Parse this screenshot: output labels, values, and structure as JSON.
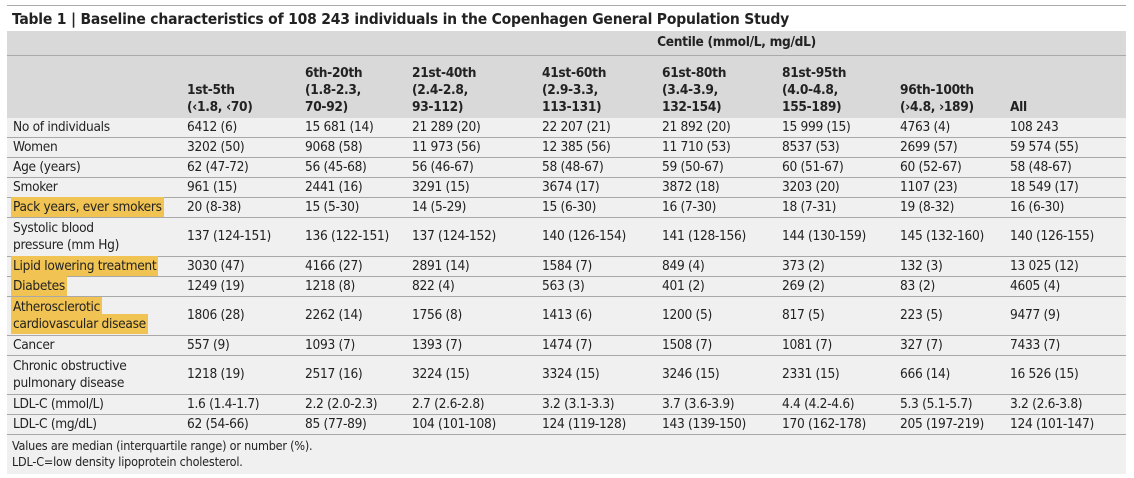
{
  "title": "Table 1 | Baseline characteristics of 108 243 individuals in the Copenhagen General Population Study",
  "group_header": "Centile (mmol/L, mg/dL)",
  "columns": [
    [
      "1st-5th",
      "(‹1.8, ‹70)"
    ],
    [
      "6th-20th",
      "(1.8-2.3,",
      "70-92)"
    ],
    [
      "21st-40th",
      "(2.4-2.8,",
      "93-112)"
    ],
    [
      "41st-60th",
      "(2.9-3.3,",
      "113-131)"
    ],
    [
      "61st-80th",
      "(3.4-3.9,",
      "132-154)"
    ],
    [
      "81st-95th",
      "(4.0-4.8,",
      "155-189)"
    ],
    [
      "96th-100th",
      "(›4.8, ›189)"
    ],
    [
      "All"
    ]
  ],
  "highlight_color": "#f0c352",
  "rows": [
    {
      "label": [
        "No of individuals"
      ],
      "values": [
        "6412 (6)",
        "15 681 (14)",
        "21 289 (20)",
        "22 207 (21)",
        "21 892 (20)",
        "15 999 (15)",
        "4763 (4)",
        "108 243"
      ]
    },
    {
      "label": [
        "Women"
      ],
      "values": [
        "3202 (50)",
        "9068 (58)",
        "11 973 (56)",
        "12 385 (56)",
        "11 710 (53)",
        "8537 (53)",
        "2699 (57)",
        "59 574 (55)"
      ]
    },
    {
      "label": [
        "Age (years)"
      ],
      "values": [
        "62 (47-72)",
        "56 (45-68)",
        "56 (46-67)",
        "58 (48-67)",
        "59 (50-67)",
        "60 (51-67)",
        "60 (52-67)",
        "58 (48-67)"
      ]
    },
    {
      "label": [
        "Smoker"
      ],
      "values": [
        "961 (15)",
        "2441 (16)",
        "3291 (15)",
        "3674 (17)",
        "3872 (18)",
        "3203 (20)",
        "1107 (23)",
        "18 549 (17)"
      ]
    },
    {
      "label": [
        "Pack years, ever smokers"
      ],
      "highlight": true,
      "values": [
        "20 (8-38)",
        "15 (5-30)",
        "14 (5-29)",
        "15 (6-30)",
        "16 (7-30)",
        "18 (7-31)",
        "19 (8-32)",
        "16 (6-30)"
      ]
    },
    {
      "label": [
        "Systolic blood",
        "pressure (mm Hg)"
      ],
      "values": [
        "137 (124-151)",
        "136 (122-151)",
        "137 (124-152)",
        "140 (126-154)",
        "141 (128-156)",
        "144 (130-159)",
        "145 (132-160)",
        "140 (126-155)"
      ]
    },
    {
      "label": [
        "Lipid lowering treatment"
      ],
      "highlight": true,
      "values": [
        "3030 (47)",
        "4166 (27)",
        "2891 (14)",
        "1584 (7)",
        "849 (4)",
        "373 (2)",
        "132 (3)",
        "13 025 (12)"
      ]
    },
    {
      "label": [
        "Diabetes"
      ],
      "highlight": true,
      "values": [
        "1249 (19)",
        "1218 (8)",
        "822 (4)",
        "563 (3)",
        "401 (2)",
        "269 (2)",
        "83 (2)",
        "4605 (4)"
      ]
    },
    {
      "label": [
        "Atherosclerotic",
        "cardiovascular disease"
      ],
      "highlight": true,
      "values": [
        "1806 (28)",
        "2262 (14)",
        "1756 (8)",
        "1413 (6)",
        "1200 (5)",
        "817 (5)",
        "223 (5)",
        "9477 (9)"
      ]
    },
    {
      "label": [
        "Cancer"
      ],
      "values": [
        "557 (9)",
        "1093 (7)",
        "1393 (7)",
        "1474 (7)",
        "1508 (7)",
        "1081 (7)",
        "327 (7)",
        "7433 (7)"
      ]
    },
    {
      "label": [
        "Chronic obstructive",
        "pulmonary disease"
      ],
      "values": [
        "1218 (19)",
        "2517 (16)",
        "3224 (15)",
        "3324 (15)",
        "3246 (15)",
        "2331 (15)",
        "666 (14)",
        "16 526 (15)"
      ]
    },
    {
      "label": [
        "LDL-C (mmol/L)"
      ],
      "values": [
        "1.6 (1.4-1.7)",
        "2.2 (2.0-2.3)",
        "2.7 (2.6-2.8)",
        "3.2 (3.1-3.3)",
        "3.7 (3.6-3.9)",
        "4.4 (4.2-4.6)",
        "5.3 (5.1-5.7)",
        "3.2 (2.6-3.8)"
      ]
    },
    {
      "label": [
        "LDL-C (mg/dL)"
      ],
      "values": [
        "62 (54-66)",
        "85 (77-89)",
        "104 (101-108)",
        "124 (119-128)",
        "143 (139-150)",
        "170 (162-178)",
        "205 (197-219)",
        "124 (101-147)"
      ]
    }
  ],
  "footnotes": [
    "Values are median (interquartile range) or number (%).",
    "LDL-C=low density lipoprotein cholesterol."
  ]
}
